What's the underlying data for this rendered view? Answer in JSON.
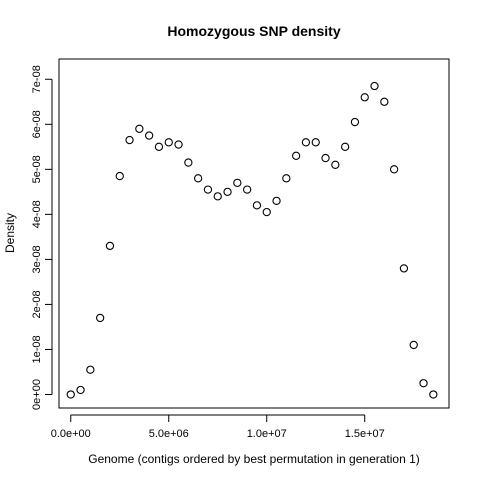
{
  "chart_data": {
    "type": "scatter",
    "title": "Homozygous SNP density",
    "xlabel": "Genome (contigs ordered by best permutation in generation 1)",
    "ylabel": "Density",
    "xlim": [
      -600000.0,
      19300000.0
    ],
    "ylim": [
      -3e-09,
      7.45e-08
    ],
    "x_ticks": [
      0,
      5000000,
      10000000,
      15000000
    ],
    "x_tick_labels": [
      "0.0e+00",
      "5.0e+06",
      "1.0e+07",
      "1.5e+07"
    ],
    "y_ticks": [
      0,
      1e-08,
      2e-08,
      3e-08,
      4e-08,
      5e-08,
      6e-08,
      7e-08
    ],
    "y_tick_labels": [
      "0e+00",
      "1e-08",
      "2e-08",
      "3e-08",
      "4e-08",
      "5e-08",
      "6e-08",
      "7e-08"
    ],
    "grid": false,
    "legend": "none",
    "marker": "open-circle",
    "color": "#000000",
    "series": [
      {
        "x": [
          0,
          500000,
          1000000,
          1500000,
          2000000,
          2500000,
          3000000,
          3500000,
          4000000,
          4500000,
          5000000,
          5500000,
          6000000,
          6500000,
          7000000,
          7500000,
          8000000,
          8500000,
          9000000,
          9500000,
          10000000,
          10500000,
          11000000,
          11500000,
          12000000,
          12500000,
          13000000,
          13500000,
          14000000,
          14500000,
          15000000,
          15500000,
          16000000,
          16500000,
          17000000,
          17500000,
          18000000,
          18500000
        ],
        "y": [
          0.0,
          1e-09,
          5.5e-09,
          1.7e-08,
          3.3e-08,
          4.85e-08,
          5.65e-08,
          5.9e-08,
          5.75e-08,
          5.5e-08,
          5.6e-08,
          5.55e-08,
          5.15e-08,
          4.8e-08,
          4.55e-08,
          4.4e-08,
          4.5e-08,
          4.7e-08,
          4.55e-08,
          4.2e-08,
          4.05e-08,
          4.3e-08,
          4.8e-08,
          5.3e-08,
          5.6e-08,
          5.6e-08,
          5.25e-08,
          5.1e-08,
          5.5e-08,
          6.05e-08,
          6.6e-08,
          6.85e-08,
          6.5e-08,
          5e-08,
          2.8e-08,
          1.1e-08,
          2.5e-09,
          0.0
        ]
      }
    ]
  }
}
